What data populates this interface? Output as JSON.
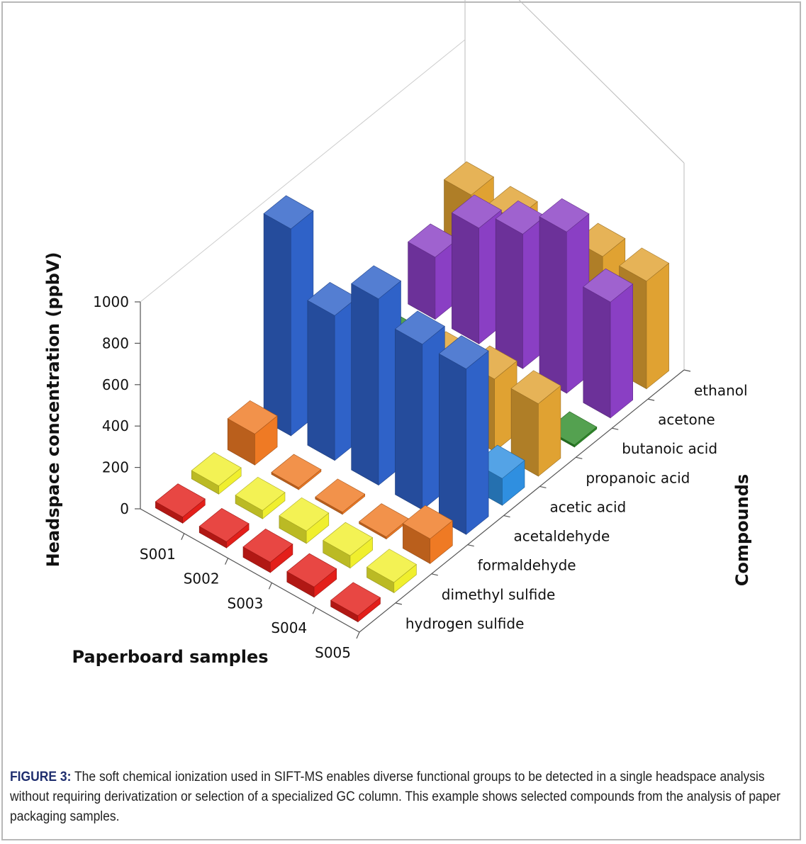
{
  "chart_data": {
    "type": "bar3d",
    "zlabel": "Headspace concentration (ppbV)",
    "xlabel": "Paperboard samples",
    "ylabel": "Compounds",
    "zlim": [
      0,
      1000
    ],
    "z_ticks": [
      "0",
      "200",
      "400",
      "600",
      "800",
      "1000"
    ],
    "samples": [
      "S001",
      "S002",
      "S003",
      "S004",
      "S005"
    ],
    "compounds": [
      "hydrogen sulfide",
      "dimethyl sulfide",
      "formaldehyde",
      "acetaldehyde",
      "acetic acid",
      "propanoic acid",
      "butanoic acid",
      "acetone",
      "ethanol"
    ],
    "values": [
      [
        30,
        40,
        150,
        1000,
        80,
        250,
        10,
        300,
        460
      ],
      [
        30,
        40,
        10,
        700,
        120,
        200,
        10,
        560,
        460
      ],
      [
        50,
        60,
        10,
        900,
        120,
        300,
        10,
        650,
        460
      ],
      [
        50,
        60,
        10,
        800,
        120,
        350,
        10,
        780,
        520
      ],
      [
        30,
        50,
        120,
        800,
        130,
        350,
        10,
        560,
        520
      ]
    ],
    "colors": [
      "#e31f1a",
      "#f0ef2e",
      "#ef7a24",
      "#2f62c8",
      "#2f8fe0",
      "#e0a232",
      "#2f8c2a",
      "#8a3fc4",
      "#e0a232"
    ]
  },
  "caption": {
    "label": "FIGURE 3:",
    "text": " The soft chemical ionization used in SIFT-MS enables diverse functional groups to be detected in a single headspace analysis without requiring derivatization or selection of a specialized GC column. This example shows selected compounds from the analysis of paper packaging samples."
  }
}
